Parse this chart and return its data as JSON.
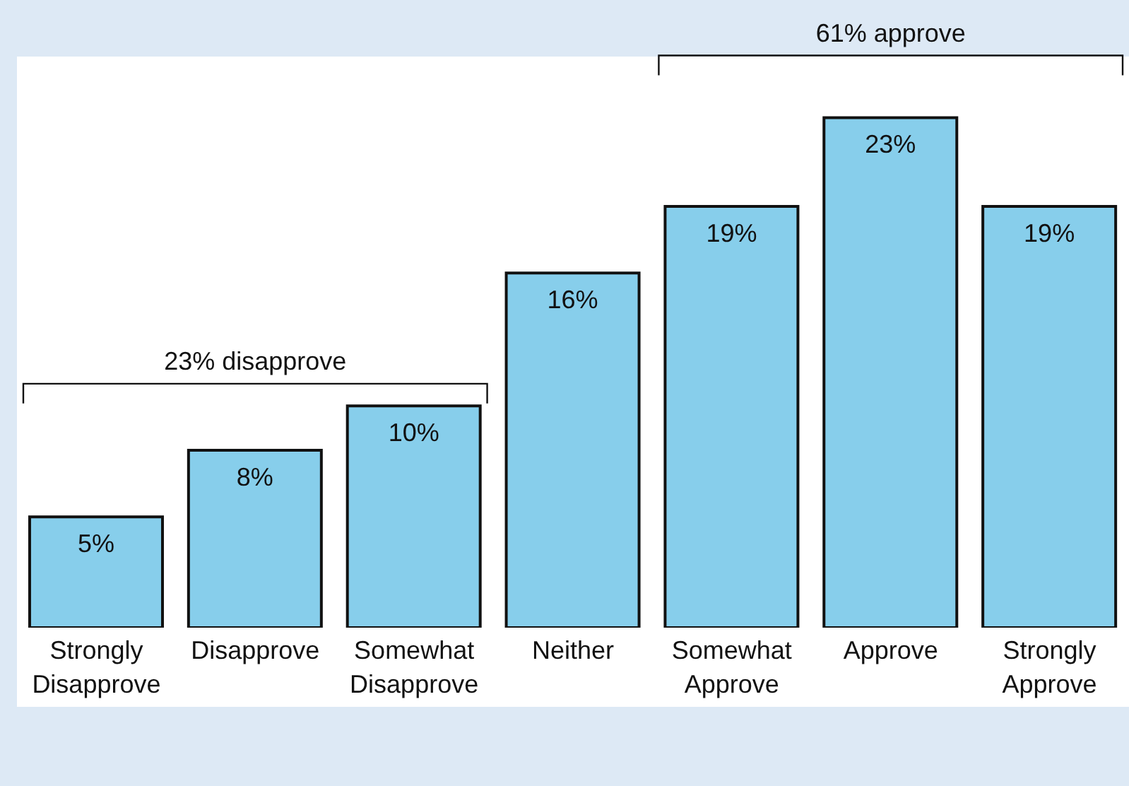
{
  "chart_data": {
    "type": "bar",
    "categories": [
      "Strongly Disapprove",
      "Disapprove",
      "Somewhat Disapprove",
      "Neither",
      "Somewhat Approve",
      "Approve",
      "Strongly Approve"
    ],
    "values": [
      5,
      8,
      10,
      16,
      19,
      23,
      19
    ],
    "value_labels": [
      "5%",
      "8%",
      "10%",
      "16%",
      "19%",
      "23%",
      "19%"
    ],
    "color": "#87ceeb",
    "annotations": [
      "23% disapprove",
      "61% approve"
    ]
  }
}
